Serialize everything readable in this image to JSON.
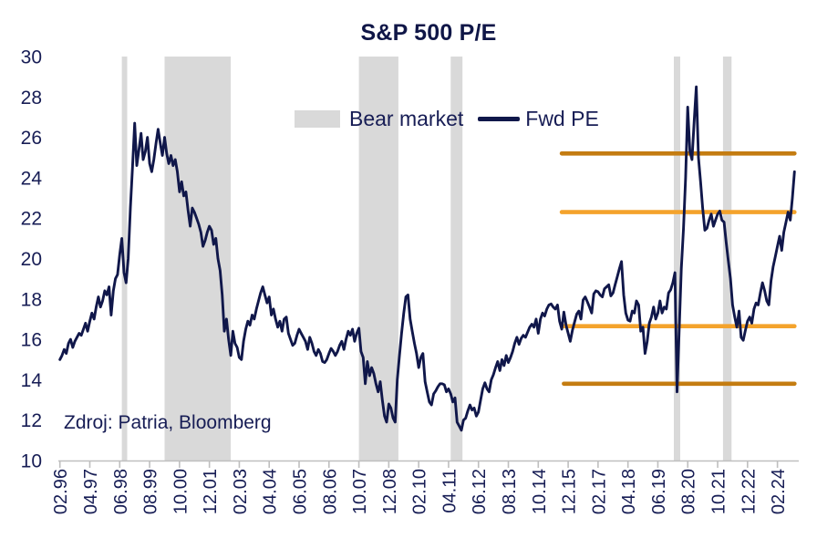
{
  "header": {
    "title": "S&P 500 P/E"
  },
  "source_note": "Zdroj: Patria, Bloomberg",
  "legend": {
    "items": [
      {
        "label": "Bear market",
        "type": "band",
        "color": "#d9d9d9"
      },
      {
        "label": "Fwd PE",
        "type": "line",
        "color": "#10174a"
      }
    ]
  },
  "colors": {
    "series_line": "#10174a",
    "text_navy": "#171d55",
    "band_gray": "#d9d9d9",
    "axis_gray": "#bfbfbf",
    "ref_dark_orange": "#c47c11",
    "ref_light_orange": "#f4a32c"
  },
  "chart_data": {
    "type": "line",
    "title": "S&P 500 P/E",
    "xlabel": "",
    "ylabel": "",
    "grid": false,
    "legend_position": "top-center",
    "y_axis": {
      "min": 10,
      "max": 30,
      "tick_step": 2,
      "ticks": [
        30,
        28,
        26,
        24,
        22,
        20,
        18,
        16,
        14,
        12,
        10
      ]
    },
    "x_axis": {
      "start": "1996-02",
      "interval": "monthly",
      "months_per_tick": 14,
      "tick_labels": [
        "02.96",
        "04.97",
        "06.98",
        "08.99",
        "10.00",
        "12.01",
        "02.03",
        "04.04",
        "06.05",
        "08.06",
        "10.07",
        "12.08",
        "02.10",
        "04.11",
        "06.12",
        "08.13",
        "10.14",
        "12.15",
        "02.17",
        "04.18",
        "06.19",
        "08.20",
        "10.21",
        "12.22",
        "02.24"
      ]
    },
    "series": [
      {
        "name": "Fwd PE",
        "start": "1996-02",
        "values": [
          15.0,
          15.2,
          15.5,
          15.3,
          15.8,
          16.0,
          15.6,
          15.9,
          16.1,
          16.3,
          16.2,
          16.5,
          16.8,
          16.4,
          16.9,
          17.3,
          17.0,
          17.6,
          18.1,
          17.6,
          17.9,
          18.4,
          18.2,
          18.6,
          17.2,
          18.4,
          19.0,
          19.2,
          20.2,
          21.0,
          19.3,
          18.8,
          20.0,
          22.5,
          24.5,
          26.7,
          24.6,
          25.4,
          26.2,
          24.9,
          25.3,
          26.0,
          24.7,
          24.3,
          24.9,
          25.7,
          26.4,
          25.7,
          25.1,
          26.0,
          25.2,
          24.7,
          25.1,
          24.6,
          24.9,
          24.3,
          23.3,
          23.8,
          23.1,
          23.3,
          22.4,
          21.6,
          22.5,
          22.3,
          22.0,
          21.7,
          21.3,
          20.6,
          20.9,
          21.3,
          21.6,
          21.4,
          20.7,
          21.0,
          20.0,
          19.4,
          18.2,
          16.4,
          17.0,
          16.0,
          15.2,
          16.4,
          15.8,
          15.6,
          15.1,
          15.0,
          15.9,
          16.5,
          16.9,
          16.7,
          17.2,
          17.0,
          17.5,
          17.9,
          18.3,
          18.6,
          18.2,
          17.8,
          18.1,
          17.2,
          17.5,
          17.0,
          16.6,
          16.9,
          16.4,
          17.0,
          17.1,
          16.3,
          16.0,
          15.7,
          15.8,
          16.2,
          16.5,
          16.3,
          16.1,
          15.9,
          15.5,
          16.1,
          15.8,
          15.4,
          15.2,
          15.5,
          15.3,
          14.9,
          14.85,
          15.0,
          15.3,
          15.55,
          15.4,
          15.2,
          15.4,
          15.7,
          15.9,
          15.5,
          16.0,
          16.4,
          16.2,
          16.5,
          15.9,
          16.3,
          16.55,
          15.4,
          15.1,
          13.8,
          14.9,
          14.2,
          14.6,
          14.3,
          13.8,
          13.4,
          13.9,
          13.0,
          12.2,
          11.9,
          12.8,
          12.6,
          12.1,
          11.9,
          14.0,
          15.2,
          16.3,
          17.3,
          18.1,
          18.2,
          17.0,
          16.4,
          15.8,
          15.3,
          14.6,
          15.1,
          15.3,
          13.9,
          13.4,
          12.9,
          12.75,
          13.3,
          13.45,
          13.65,
          13.8,
          13.8,
          13.75,
          13.4,
          13.55,
          13.3,
          12.9,
          13.1,
          11.9,
          11.7,
          11.5,
          12.0,
          12.1,
          12.45,
          12.75,
          12.5,
          12.6,
          12.2,
          12.4,
          13.0,
          13.55,
          13.85,
          13.55,
          13.4,
          14.0,
          14.25,
          14.6,
          14.9,
          14.45,
          15.0,
          14.7,
          15.2,
          14.85,
          15.1,
          15.4,
          15.8,
          16.1,
          15.75,
          16.05,
          16.2,
          16.1,
          16.35,
          16.6,
          16.75,
          16.6,
          17.0,
          16.3,
          17.0,
          17.3,
          17.15,
          17.5,
          17.7,
          17.75,
          17.6,
          17.5,
          17.7,
          16.9,
          16.5,
          17.35,
          16.7,
          16.3,
          15.9,
          16.45,
          16.85,
          17.25,
          17.4,
          17.0,
          17.95,
          18.1,
          17.85,
          17.6,
          17.3,
          18.25,
          18.4,
          18.35,
          18.2,
          18.1,
          18.5,
          18.6,
          18.7,
          18.15,
          18.3,
          18.7,
          19.1,
          19.5,
          19.85,
          18.2,
          17.3,
          16.95,
          16.9,
          17.4,
          17.3,
          17.9,
          17.7,
          16.4,
          16.6,
          15.3,
          15.9,
          16.8,
          17.1,
          17.6,
          17.0,
          17.3,
          17.9,
          17.3,
          17.6,
          17.5,
          18.3,
          18.45,
          18.8,
          19.3,
          13.4,
          16.5,
          19.5,
          21.5,
          24.0,
          27.5,
          25.3,
          24.9,
          26.8,
          28.5,
          25.0,
          23.8,
          22.5,
          21.4,
          21.5,
          21.9,
          22.2,
          21.6,
          21.9,
          22.2,
          22.35,
          21.9,
          21.8,
          20.8,
          19.9,
          19.0,
          17.7,
          17.1,
          16.6,
          17.4,
          16.1,
          15.95,
          16.45,
          16.9,
          17.1,
          16.8,
          17.5,
          17.8,
          17.7,
          18.3,
          18.8,
          18.4,
          17.9,
          17.7,
          18.9,
          19.6,
          20.1,
          20.6,
          21.1,
          20.4,
          21.3,
          21.8,
          22.3,
          21.9,
          23.0,
          24.3
        ]
      }
    ],
    "bear_market_bands": [
      {
        "from_month": 29,
        "to_month": 31.5
      },
      {
        "from_month": 49,
        "to_month": 80
      },
      {
        "from_month": 140,
        "to_month": 158.5
      },
      {
        "from_month": 183,
        "to_month": 188.5
      },
      {
        "from_month": 287.5,
        "to_month": 290.5
      },
      {
        "from_month": 310.5,
        "to_month": 314.5
      }
    ],
    "reference_lines": [
      {
        "value": 25.2,
        "shade": "dark",
        "from_month": 235,
        "to_month": 344
      },
      {
        "value": 22.3,
        "shade": "light",
        "from_month": 235,
        "to_month": 344
      },
      {
        "value": 16.65,
        "shade": "light",
        "from_month": 236,
        "to_month": 344
      },
      {
        "value": 13.8,
        "shade": "dark",
        "from_month": 236,
        "to_month": 344
      }
    ]
  }
}
